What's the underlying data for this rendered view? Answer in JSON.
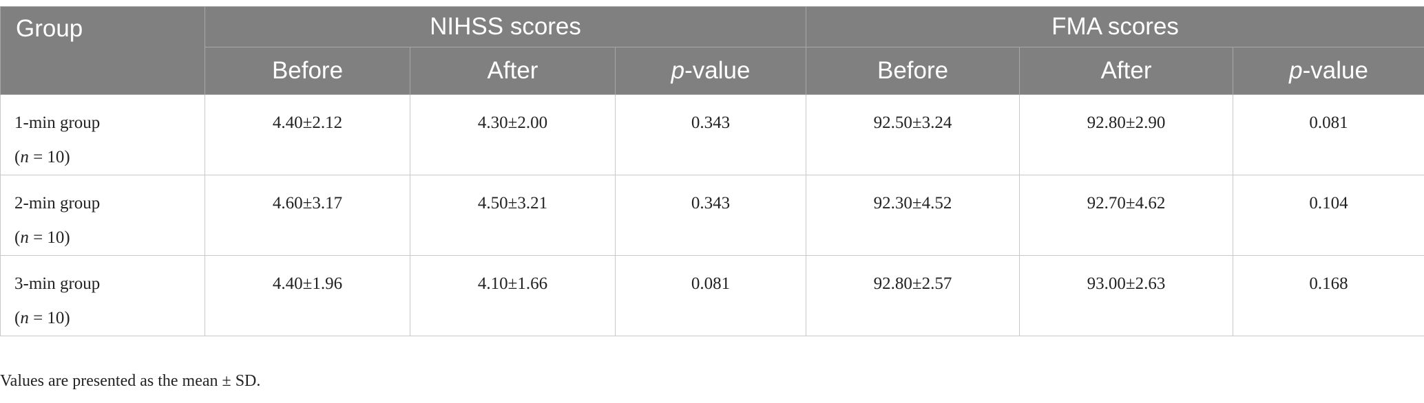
{
  "table": {
    "header": {
      "group": "Group",
      "groups": [
        "NIHSS scores",
        "FMA scores"
      ],
      "columns": [
        "Before",
        "After",
        {
          "italic": "p",
          "rest": "-value"
        },
        "Before",
        "After",
        {
          "italic": "p",
          "rest": "-value"
        }
      ]
    },
    "rows": [
      {
        "group": "1-min group",
        "n": [
          "(",
          "n",
          " = 10)"
        ],
        "cells": [
          "4.40±2.12",
          "4.30±2.00",
          "0.343",
          "92.50±3.24",
          "92.80±2.90",
          "0.081"
        ]
      },
      {
        "group": "2-min group",
        "n": [
          "(",
          "n",
          " = 10)"
        ],
        "cells": [
          "4.60±3.17",
          "4.50±3.21",
          "0.343",
          "92.30±4.52",
          "92.70±4.62",
          "0.104"
        ]
      },
      {
        "group": "3-min group",
        "n": [
          "(",
          "n",
          " = 10)"
        ],
        "cells": [
          "4.40±1.96",
          "4.10±1.66",
          "0.081",
          "92.80±2.57",
          "93.00±2.63",
          "0.168"
        ]
      }
    ]
  },
  "footnote": "Values are presented as the mean ± SD."
}
